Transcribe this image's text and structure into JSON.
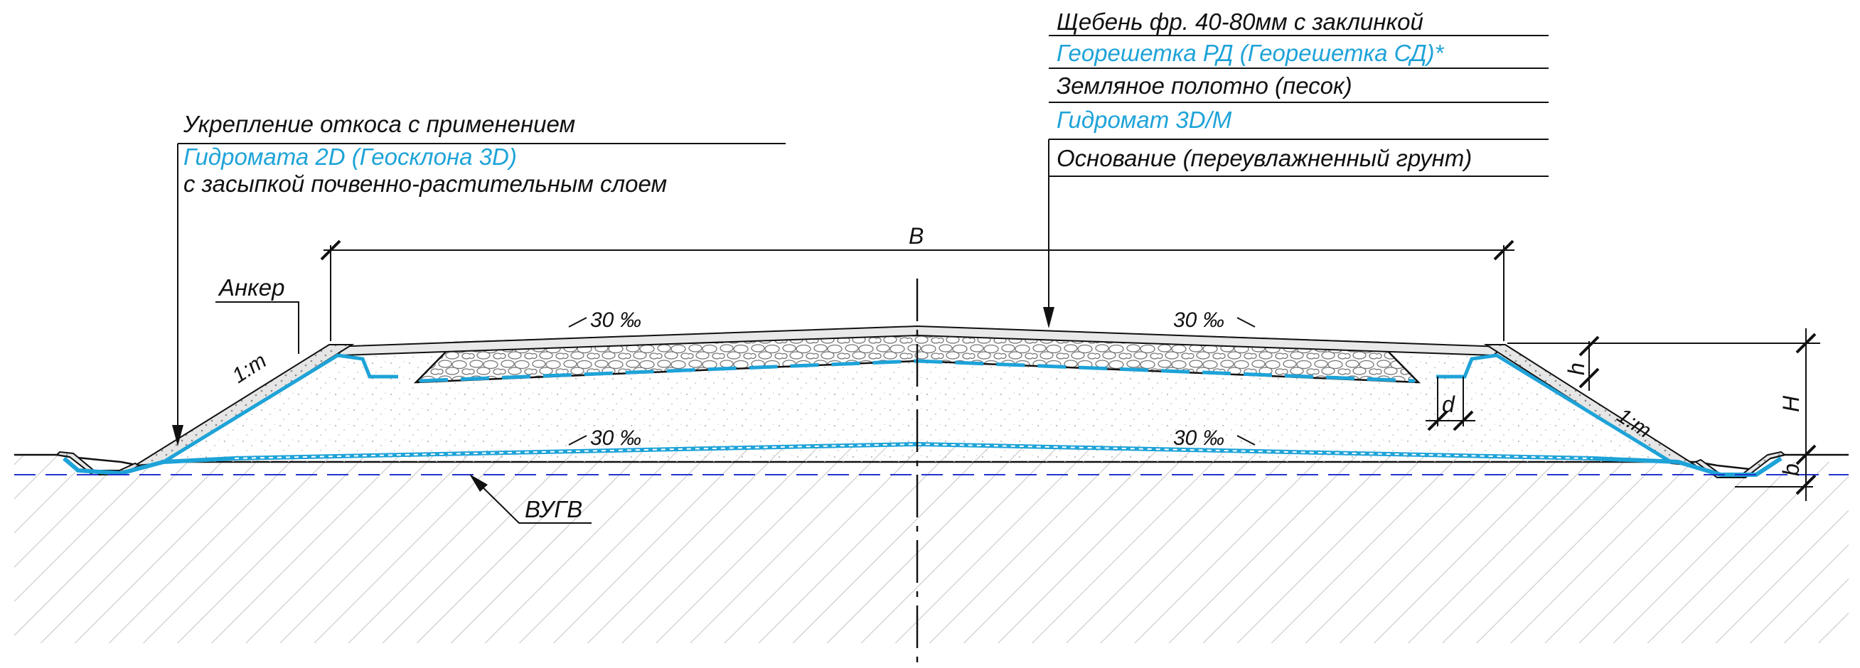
{
  "legend_left": {
    "line1": "Укрепление откоса с применением",
    "line2": "Гидромата 2D (Геосклона 3D)",
    "line3": "с засыпкой почвенно-растительным слоем"
  },
  "legend_right": {
    "line1": "Щебень фр. 40-80мм с заклинкой",
    "line2": "Георешетка РД (Георешетка СД)*",
    "line3": "Земляное полотно (песок)",
    "line4": "Гидромат 3D/M",
    "line5": "Основание (переувлажненный грунт)"
  },
  "labels": {
    "anchor": "Анкер",
    "slope_left": "1:m",
    "slope_right": "1:m",
    "grade_top_left": "30 ‰",
    "grade_top_right": "30 ‰",
    "grade_bottom_left": "30 ‰",
    "grade_bottom_right": "30 ‰",
    "width_B": "B",
    "height_H": "H",
    "height_h": "h",
    "dim_d": "d",
    "dim_b": "b",
    "groundwater": "ВУГВ"
  },
  "colors": {
    "ink": "#111111",
    "blue": "#1ea3d8",
    "groundwater_dash": "#2233cc",
    "hatch": "#bdbdbd"
  }
}
